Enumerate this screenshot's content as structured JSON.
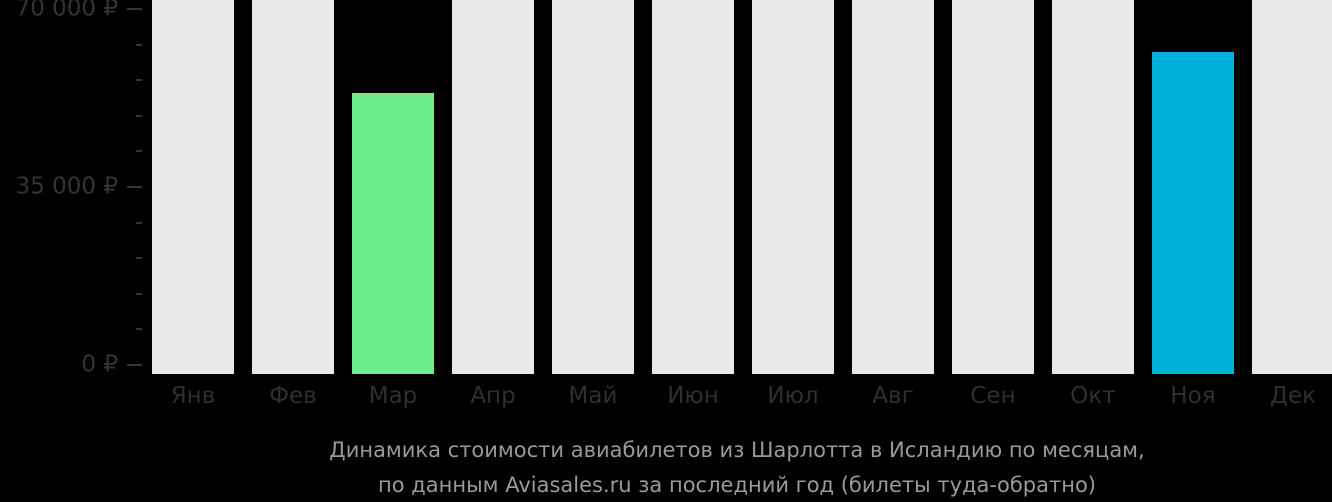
{
  "title": {
    "line1": "Динамика стоимости авиабилетов из Шарлотта в Исландию по месяцам,",
    "line2": "по данным Aviasales.ru за последний год (билеты туда-обратно)"
  },
  "y_axis": {
    "max": 70000,
    "minor_step": 7000,
    "major_labels": {
      "0": "0 ₽",
      "35000": "35 000 ₽",
      "70000": "70 000 ₽"
    }
  },
  "chart_data": {
    "type": "bar",
    "title": "Динамика стоимости авиабилетов из Шарлотта в Исландию по месяцам, по данным Aviasales.ru за последний год (билеты туда-обратно)",
    "categories": [
      "Янв",
      "Фев",
      "Мар",
      "Апр",
      "Май",
      "Июн",
      "Июл",
      "Авг",
      "Сен",
      "Окт",
      "Ноя",
      "Дек"
    ],
    "values": [
      null,
      null,
      53500,
      null,
      null,
      null,
      null,
      null,
      null,
      null,
      61600,
      null
    ],
    "ylabel": "₽",
    "ylim": [
      0,
      70000
    ],
    "y_major_ticks": [
      0,
      35000,
      70000
    ],
    "y_minor_tick_step": 7000,
    "legend": "none",
    "grid": "off",
    "no_data_style": "full-height gray bar",
    "bar_colors": {
      "Мар": "#6CEE8C",
      "Ноя": "#00B1DC",
      "no_data": "#E8E8E8"
    },
    "background": "#000000"
  }
}
